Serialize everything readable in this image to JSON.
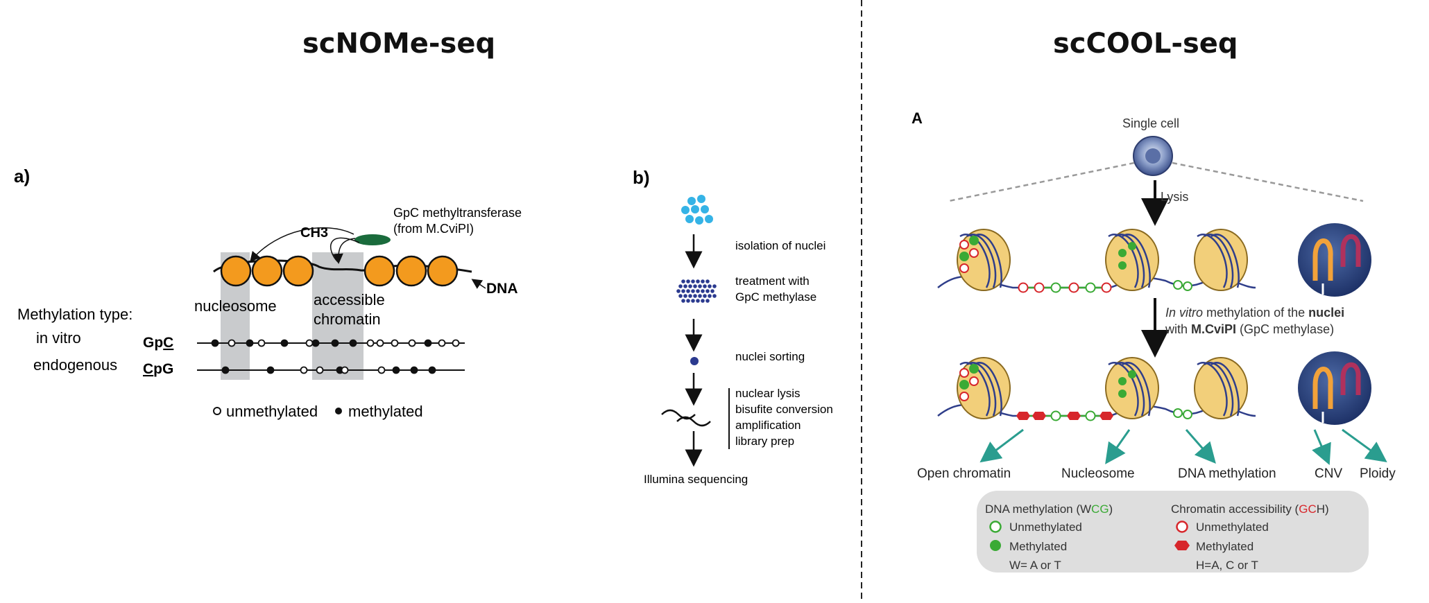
{
  "titles": {
    "left": "scNOMe-seq",
    "right": "scCOOL-seq"
  },
  "panel_a": {
    "label": "a)",
    "enzyme": "GpC methyltransferase",
    "enzyme_source": "(from M.CviPI)",
    "ch3": "CH3",
    "dna": "DNA",
    "nucleosome": "nucleosome",
    "accessible_line1": "accessible",
    "accessible_line2": "chromatin",
    "methylation_type": "Methylation type:",
    "in_vitro": "in vitro",
    "endogenous": "endogenous",
    "gpc_prefix": "Gp",
    "gpc_suffix": "C",
    "cpg_prefix": "C",
    "cpg_suffix": "pG",
    "legend_unmethylated": "unmethylated",
    "legend_methylated": "methylated"
  },
  "panel_b": {
    "label": "b)",
    "step1": "isolation of nuclei",
    "step2_line1": "treatment with",
    "step2_line2": "GpC methylase",
    "step3": "nuclei sorting",
    "step4_line1": "nuclear lysis",
    "step4_line2": "bisufite conversion",
    "step4_line3": "amplification",
    "step4_line4": "library prep",
    "final": "Illumina sequencing"
  },
  "scool": {
    "label": "A",
    "single_cell": "Single cell",
    "lysis": "Lysis",
    "invitro_1": "In vitro",
    "invitro_2": " methylation of the ",
    "invitro_3": "nuclei",
    "invitro_4": "with ",
    "invitro_5": "M.CviPI",
    "invitro_6": " (GpC methylase)",
    "outputs": [
      "Open chromatin",
      "Nucleosome",
      "DNA methylation",
      "CNV",
      "Ploidy"
    ],
    "legend": {
      "dna_title_a": "DNA methylation (W",
      "dna_title_b": "CG",
      "dna_title_c": ")",
      "chrom_title_a": "Chromatin accessibility (",
      "chrom_title_b": "GC",
      "chrom_title_c": "H)",
      "unmethylated": "Unmethylated",
      "methylated": "Methylated",
      "dna_note": "W= A or T",
      "chrom_note": "H=A, C or T"
    }
  },
  "colors": {
    "nucleosome_orange": "#f39a1e",
    "enzyme_green": "#1a6b3c",
    "shade_gray": "#c9cbcd",
    "nuclei_cyan": "#35b3e6",
    "nuclei_navy": "#2b3a8f",
    "teal_arrow": "#2a9d8f",
    "meth_green": "#3aaa35",
    "gch_red": "#d7262b"
  }
}
